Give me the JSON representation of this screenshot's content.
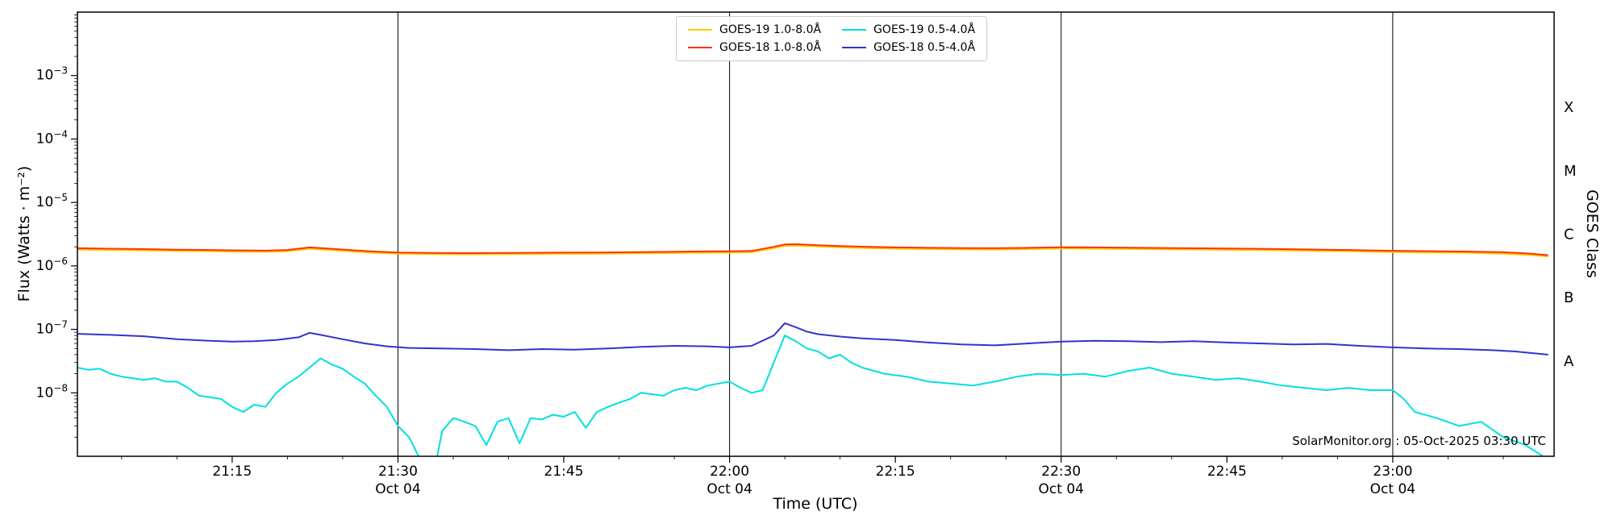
{
  "chart_data": {
    "type": "line",
    "title": "",
    "xlabel": "Time (UTC)",
    "ylabel": "Flux (Watts · m⁻²)",
    "ylabel_right": "GOES Class",
    "annotation": "SolarMonitor.org : 05-Oct-2025 03:30 UTC",
    "legend_position": "top-center",
    "grid": false,
    "x_axis": {
      "unit": "minutes after 21:00 UTC, 04-Oct-2025",
      "min": 1,
      "max": 134.6,
      "minor_tick_step": 5,
      "major_ticks": [
        {
          "t": 15,
          "label": "21:15"
        },
        {
          "t": 30,
          "label": "21:30",
          "sub": "Oct 04"
        },
        {
          "t": 45,
          "label": "21:45"
        },
        {
          "t": 60,
          "label": "22:00",
          "sub": "Oct 04"
        },
        {
          "t": 75,
          "label": "22:15"
        },
        {
          "t": 90,
          "label": "22:30",
          "sub": "Oct 04"
        },
        {
          "t": 105,
          "label": "22:45"
        },
        {
          "t": 120,
          "label": "23:00",
          "sub": "Oct 04"
        }
      ],
      "day_lines": [
        30,
        60,
        90,
        120
      ]
    },
    "y_axis": {
      "scale": "log",
      "min": 1e-09,
      "max": 0.01,
      "labeled_exponents": [
        -3,
        -4,
        -5,
        -6,
        -7,
        -8
      ]
    },
    "goes_classes": [
      {
        "label": "X",
        "exp": -3.5
      },
      {
        "label": "M",
        "exp": -4.5
      },
      {
        "label": "C",
        "exp": -5.5
      },
      {
        "label": "B",
        "exp": -6.5
      },
      {
        "label": "A",
        "exp": -7.5
      }
    ],
    "series": [
      {
        "name": "GOES-19 1.0-8.0Å",
        "color": "#ffcc00",
        "points": [
          [
            1,
            1.8e-06
          ],
          [
            4,
            1.78e-06
          ],
          [
            7,
            1.75e-06
          ],
          [
            10,
            1.72e-06
          ],
          [
            13,
            1.7e-06
          ],
          [
            15,
            1.68e-06
          ],
          [
            18,
            1.66e-06
          ],
          [
            20,
            1.7e-06
          ],
          [
            22,
            1.86e-06
          ],
          [
            24,
            1.77e-06
          ],
          [
            26,
            1.68e-06
          ],
          [
            28,
            1.61e-06
          ],
          [
            30,
            1.56e-06
          ],
          [
            33,
            1.53e-06
          ],
          [
            36,
            1.52e-06
          ],
          [
            40,
            1.53e-06
          ],
          [
            44,
            1.55e-06
          ],
          [
            48,
            1.56e-06
          ],
          [
            52,
            1.58e-06
          ],
          [
            56,
            1.6e-06
          ],
          [
            60,
            1.62e-06
          ],
          [
            62,
            1.64e-06
          ],
          [
            64,
            1.9e-06
          ],
          [
            65,
            2.07e-06
          ],
          [
            66,
            2.09e-06
          ],
          [
            68,
            2.02e-06
          ],
          [
            70,
            1.96e-06
          ],
          [
            72,
            1.91e-06
          ],
          [
            75,
            1.87e-06
          ],
          [
            78,
            1.84e-06
          ],
          [
            81,
            1.82e-06
          ],
          [
            84,
            1.81e-06
          ],
          [
            87,
            1.84e-06
          ],
          [
            90,
            1.88e-06
          ],
          [
            93,
            1.87e-06
          ],
          [
            96,
            1.85e-06
          ],
          [
            100,
            1.82e-06
          ],
          [
            104,
            1.8e-06
          ],
          [
            108,
            1.77e-06
          ],
          [
            112,
            1.73e-06
          ],
          [
            116,
            1.7e-06
          ],
          [
            120,
            1.65e-06
          ],
          [
            124,
            1.62e-06
          ],
          [
            127,
            1.6e-06
          ],
          [
            130,
            1.56e-06
          ],
          [
            132,
            1.5e-06
          ],
          [
            134,
            1.41e-06
          ]
        ]
      },
      {
        "name": "GOES-18 1.0-8.0Å",
        "color": "#ff3300",
        "points": [
          [
            1,
            1.9e-06
          ],
          [
            4,
            1.87e-06
          ],
          [
            7,
            1.84e-06
          ],
          [
            10,
            1.8e-06
          ],
          [
            13,
            1.78e-06
          ],
          [
            15,
            1.76e-06
          ],
          [
            18,
            1.74e-06
          ],
          [
            20,
            1.78e-06
          ],
          [
            22,
            1.96e-06
          ],
          [
            24,
            1.86e-06
          ],
          [
            26,
            1.76e-06
          ],
          [
            28,
            1.68e-06
          ],
          [
            30,
            1.63e-06
          ],
          [
            33,
            1.6e-06
          ],
          [
            36,
            1.59e-06
          ],
          [
            40,
            1.6e-06
          ],
          [
            44,
            1.62e-06
          ],
          [
            48,
            1.63e-06
          ],
          [
            52,
            1.65e-06
          ],
          [
            56,
            1.68e-06
          ],
          [
            60,
            1.7e-06
          ],
          [
            62,
            1.72e-06
          ],
          [
            64,
            2e-06
          ],
          [
            65,
            2.18e-06
          ],
          [
            66,
            2.2e-06
          ],
          [
            68,
            2.12e-06
          ],
          [
            70,
            2.06e-06
          ],
          [
            72,
            2.01e-06
          ],
          [
            75,
            1.96e-06
          ],
          [
            78,
            1.93e-06
          ],
          [
            81,
            1.91e-06
          ],
          [
            84,
            1.9e-06
          ],
          [
            87,
            1.93e-06
          ],
          [
            90,
            1.97e-06
          ],
          [
            93,
            1.96e-06
          ],
          [
            96,
            1.94e-06
          ],
          [
            100,
            1.91e-06
          ],
          [
            104,
            1.89e-06
          ],
          [
            108,
            1.86e-06
          ],
          [
            112,
            1.82e-06
          ],
          [
            116,
            1.78e-06
          ],
          [
            120,
            1.73e-06
          ],
          [
            124,
            1.7e-06
          ],
          [
            127,
            1.68e-06
          ],
          [
            130,
            1.64e-06
          ],
          [
            132,
            1.58e-06
          ],
          [
            134,
            1.48e-06
          ]
        ]
      },
      {
        "name": "GOES-19 0.5-4.0Å",
        "color": "#00e0e0",
        "points": [
          [
            1,
            2.5e-08
          ],
          [
            2,
            2.3e-08
          ],
          [
            3,
            2.4e-08
          ],
          [
            4,
            2e-08
          ],
          [
            5,
            1.8e-08
          ],
          [
            6,
            1.7e-08
          ],
          [
            7,
            1.6e-08
          ],
          [
            8,
            1.7e-08
          ],
          [
            9,
            1.5e-08
          ],
          [
            10,
            1.5e-08
          ],
          [
            11,
            1.2e-08
          ],
          [
            12,
            9e-09
          ],
          [
            13,
            8.5e-09
          ],
          [
            14,
            8e-09
          ],
          [
            15,
            6e-09
          ],
          [
            16,
            5e-09
          ],
          [
            17,
            6.5e-09
          ],
          [
            18,
            6e-09
          ],
          [
            19,
            1e-08
          ],
          [
            20,
            1.4e-08
          ],
          [
            21,
            1.8e-08
          ],
          [
            22,
            2.5e-08
          ],
          [
            23,
            3.5e-08
          ],
          [
            24,
            2.8e-08
          ],
          [
            25,
            2.4e-08
          ],
          [
            26,
            1.8e-08
          ],
          [
            27,
            1.4e-08
          ],
          [
            28,
            9e-09
          ],
          [
            29,
            6e-09
          ],
          [
            30,
            3e-09
          ],
          [
            31,
            2e-09
          ],
          [
            32,
            9e-10
          ],
          [
            33.5,
            9e-10
          ],
          [
            34,
            2.5e-09
          ],
          [
            35,
            4e-09
          ],
          [
            36,
            3.5e-09
          ],
          [
            37,
            3e-09
          ],
          [
            38,
            1.5e-09
          ],
          [
            39,
            3.5e-09
          ],
          [
            40,
            4e-09
          ],
          [
            41,
            1.6e-09
          ],
          [
            42,
            4e-09
          ],
          [
            43,
            3.8e-09
          ],
          [
            44,
            4.5e-09
          ],
          [
            45,
            4.2e-09
          ],
          [
            46,
            5e-09
          ],
          [
            47,
            2.8e-09
          ],
          [
            48,
            5e-09
          ],
          [
            49,
            6e-09
          ],
          [
            50,
            7e-09
          ],
          [
            51,
            8e-09
          ],
          [
            52,
            1e-08
          ],
          [
            53,
            9.5e-09
          ],
          [
            54,
            9e-09
          ],
          [
            55,
            1.1e-08
          ],
          [
            56,
            1.2e-08
          ],
          [
            57,
            1.1e-08
          ],
          [
            58,
            1.3e-08
          ],
          [
            59,
            1.4e-08
          ],
          [
            60,
            1.5e-08
          ],
          [
            61,
            1.2e-08
          ],
          [
            62,
            1e-08
          ],
          [
            63,
            1.1e-08
          ],
          [
            64,
            3e-08
          ],
          [
            65,
            8e-08
          ],
          [
            66,
            6.5e-08
          ],
          [
            67,
            5e-08
          ],
          [
            68,
            4.5e-08
          ],
          [
            69,
            3.5e-08
          ],
          [
            70,
            4e-08
          ],
          [
            71,
            3e-08
          ],
          [
            72,
            2.5e-08
          ],
          [
            74,
            2e-08
          ],
          [
            76,
            1.8e-08
          ],
          [
            78,
            1.5e-08
          ],
          [
            80,
            1.4e-08
          ],
          [
            82,
            1.3e-08
          ],
          [
            84,
            1.5e-08
          ],
          [
            86,
            1.8e-08
          ],
          [
            88,
            2e-08
          ],
          [
            90,
            1.9e-08
          ],
          [
            92,
            2e-08
          ],
          [
            94,
            1.8e-08
          ],
          [
            96,
            2.2e-08
          ],
          [
            98,
            2.5e-08
          ],
          [
            100,
            2e-08
          ],
          [
            102,
            1.8e-08
          ],
          [
            104,
            1.6e-08
          ],
          [
            106,
            1.7e-08
          ],
          [
            108,
            1.5e-08
          ],
          [
            110,
            1.3e-08
          ],
          [
            112,
            1.2e-08
          ],
          [
            114,
            1.1e-08
          ],
          [
            116,
            1.2e-08
          ],
          [
            118,
            1.1e-08
          ],
          [
            120,
            1.1e-08
          ],
          [
            121,
            8e-09
          ],
          [
            122,
            5e-09
          ],
          [
            124,
            4e-09
          ],
          [
            126,
            3e-09
          ],
          [
            128,
            3.5e-09
          ],
          [
            130,
            2e-09
          ],
          [
            132,
            1.5e-09
          ],
          [
            134,
            9e-10
          ]
        ]
      },
      {
        "name": "GOES-18 0.5-4.0Å",
        "color": "#3333cc",
        "points": [
          [
            1,
            8.5e-08
          ],
          [
            4,
            8.2e-08
          ],
          [
            7,
            7.8e-08
          ],
          [
            10,
            7e-08
          ],
          [
            13,
            6.6e-08
          ],
          [
            15,
            6.4e-08
          ],
          [
            17,
            6.5e-08
          ],
          [
            19,
            6.8e-08
          ],
          [
            21,
            7.5e-08
          ],
          [
            22,
            8.8e-08
          ],
          [
            23,
            8.2e-08
          ],
          [
            25,
            7e-08
          ],
          [
            27,
            6e-08
          ],
          [
            29,
            5.4e-08
          ],
          [
            31,
            5.1e-08
          ],
          [
            34,
            5e-08
          ],
          [
            37,
            4.9e-08
          ],
          [
            40,
            4.7e-08
          ],
          [
            43,
            4.9e-08
          ],
          [
            46,
            4.8e-08
          ],
          [
            49,
            5e-08
          ],
          [
            52,
            5.3e-08
          ],
          [
            55,
            5.5e-08
          ],
          [
            58,
            5.4e-08
          ],
          [
            60,
            5.2e-08
          ],
          [
            62,
            5.5e-08
          ],
          [
            64,
            8e-08
          ],
          [
            65,
            1.25e-07
          ],
          [
            66,
            1.08e-07
          ],
          [
            67,
            9.2e-08
          ],
          [
            68,
            8.4e-08
          ],
          [
            70,
            7.7e-08
          ],
          [
            72,
            7.2e-08
          ],
          [
            75,
            6.8e-08
          ],
          [
            78,
            6.2e-08
          ],
          [
            81,
            5.8e-08
          ],
          [
            84,
            5.6e-08
          ],
          [
            87,
            6e-08
          ],
          [
            90,
            6.4e-08
          ],
          [
            93,
            6.6e-08
          ],
          [
            96,
            6.5e-08
          ],
          [
            99,
            6.3e-08
          ],
          [
            102,
            6.5e-08
          ],
          [
            105,
            6.2e-08
          ],
          [
            108,
            6e-08
          ],
          [
            111,
            5.8e-08
          ],
          [
            114,
            5.9e-08
          ],
          [
            117,
            5.5e-08
          ],
          [
            120,
            5.2e-08
          ],
          [
            123,
            5e-08
          ],
          [
            126,
            4.9e-08
          ],
          [
            129,
            4.7e-08
          ],
          [
            131,
            4.5e-08
          ],
          [
            134,
            4e-08
          ]
        ]
      }
    ],
    "draw_order": [
      0,
      2,
      3,
      1
    ]
  }
}
